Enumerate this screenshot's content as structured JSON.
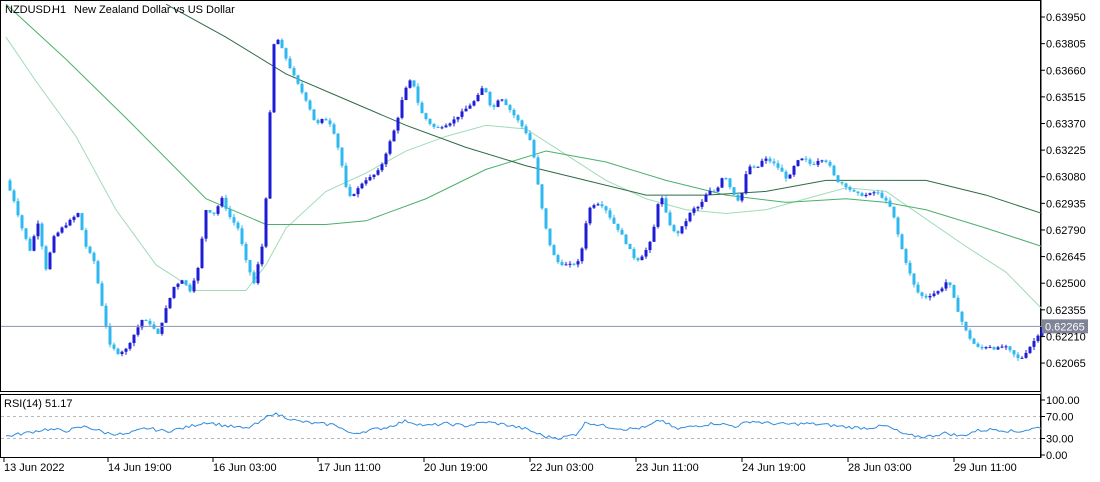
{
  "chart_data": {
    "type": "candlestick",
    "symbol": "NZDUSD.",
    "timeframe": "H1",
    "title": "New Zealand Dollar vs US Dollar",
    "current_price": "0.62265",
    "y_ticks": [
      "0.63950",
      "0.63805",
      "0.63660",
      "0.63515",
      "0.63370",
      "0.63225",
      "0.63080",
      "0.62935",
      "0.62790",
      "0.62645",
      "0.62500",
      "0.62355",
      "0.62210",
      "0.62065"
    ],
    "ylim": [
      0.6194,
      0.6401
    ],
    "x_tick_labels": [
      "13 Jun 2022",
      "14 Jun 19:00",
      "16 Jun 03:00",
      "17 Jun 11:00",
      "20 Jun 19:00",
      "22 Jun 03:00",
      "23 Jun 11:00",
      "24 Jun 19:00",
      "28 Jun 03:00",
      "29 Jun 11:00"
    ],
    "price_path": [
      [
        0,
        0.6306
      ],
      [
        8,
        0.6295
      ],
      [
        16,
        0.628
      ],
      [
        24,
        0.6268
      ],
      [
        32,
        0.6283
      ],
      [
        40,
        0.6258
      ],
      [
        48,
        0.6275
      ],
      [
        56,
        0.628
      ],
      [
        64,
        0.6284
      ],
      [
        72,
        0.6288
      ],
      [
        80,
        0.627
      ],
      [
        88,
        0.6262
      ],
      [
        96,
        0.6238
      ],
      [
        104,
        0.6216
      ],
      [
        112,
        0.6212
      ],
      [
        120,
        0.6214
      ],
      [
        128,
        0.6222
      ],
      [
        136,
        0.623
      ],
      [
        144,
        0.6228
      ],
      [
        152,
        0.6222
      ],
      [
        160,
        0.6236
      ],
      [
        168,
        0.6248
      ],
      [
        176,
        0.6252
      ],
      [
        184,
        0.6246
      ],
      [
        192,
        0.6258
      ],
      [
        200,
        0.629
      ],
      [
        208,
        0.6288
      ],
      [
        216,
        0.6296
      ],
      [
        224,
        0.6286
      ],
      [
        232,
        0.628
      ],
      [
        240,
        0.6262
      ],
      [
        248,
        0.625
      ],
      [
        256,
        0.627
      ],
      [
        262,
        0.631
      ],
      [
        266,
        0.6375
      ],
      [
        270,
        0.6385
      ],
      [
        278,
        0.6375
      ],
      [
        286,
        0.6365
      ],
      [
        294,
        0.6356
      ],
      [
        302,
        0.6348
      ],
      [
        310,
        0.6336
      ],
      [
        318,
        0.634
      ],
      [
        326,
        0.6336
      ],
      [
        334,
        0.632
      ],
      [
        342,
        0.6296
      ],
      [
        350,
        0.63
      ],
      [
        358,
        0.6306
      ],
      [
        366,
        0.6308
      ],
      [
        374,
        0.6312
      ],
      [
        382,
        0.6324
      ],
      [
        390,
        0.6336
      ],
      [
        398,
        0.6354
      ],
      [
        406,
        0.6362
      ],
      [
        414,
        0.6344
      ],
      [
        422,
        0.6338
      ],
      [
        430,
        0.6334
      ],
      [
        438,
        0.6336
      ],
      [
        446,
        0.6338
      ],
      [
        454,
        0.6342
      ],
      [
        462,
        0.6346
      ],
      [
        470,
        0.635
      ],
      [
        478,
        0.6358
      ],
      [
        486,
        0.6344
      ],
      [
        494,
        0.6352
      ],
      [
        502,
        0.6346
      ],
      [
        510,
        0.634
      ],
      [
        518,
        0.6334
      ],
      [
        526,
        0.6326
      ],
      [
        534,
        0.6296
      ],
      [
        542,
        0.6274
      ],
      [
        550,
        0.6262
      ],
      [
        558,
        0.626
      ],
      [
        566,
        0.626
      ],
      [
        574,
        0.6262
      ],
      [
        582,
        0.629
      ],
      [
        590,
        0.6294
      ],
      [
        598,
        0.6292
      ],
      [
        606,
        0.6284
      ],
      [
        614,
        0.6278
      ],
      [
        622,
        0.627
      ],
      [
        630,
        0.6262
      ],
      [
        638,
        0.6266
      ],
      [
        646,
        0.6274
      ],
      [
        654,
        0.63
      ],
      [
        662,
        0.6284
      ],
      [
        670,
        0.6276
      ],
      [
        678,
        0.6282
      ],
      [
        686,
        0.629
      ],
      [
        694,
        0.6292
      ],
      [
        702,
        0.63
      ],
      [
        710,
        0.63
      ],
      [
        718,
        0.631
      ],
      [
        726,
        0.63
      ],
      [
        734,
        0.6294
      ],
      [
        742,
        0.6314
      ],
      [
        750,
        0.6312
      ],
      [
        758,
        0.6318
      ],
      [
        766,
        0.6316
      ],
      [
        774,
        0.6312
      ],
      [
        782,
        0.6306
      ],
      [
        790,
        0.6316
      ],
      [
        798,
        0.6318
      ],
      [
        806,
        0.6314
      ],
      [
        814,
        0.6318
      ],
      [
        822,
        0.6316
      ],
      [
        830,
        0.6306
      ],
      [
        838,
        0.6304
      ],
      [
        846,
        0.63
      ],
      [
        854,
        0.6298
      ],
      [
        862,
        0.6298
      ],
      [
        870,
        0.63
      ],
      [
        878,
        0.6296
      ],
      [
        886,
        0.629
      ],
      [
        894,
        0.6272
      ],
      [
        902,
        0.6258
      ],
      [
        910,
        0.6246
      ],
      [
        918,
        0.6242
      ],
      [
        926,
        0.6244
      ],
      [
        934,
        0.6246
      ],
      [
        942,
        0.6252
      ],
      [
        950,
        0.6238
      ],
      [
        958,
        0.6226
      ],
      [
        966,
        0.6218
      ],
      [
        974,
        0.6214
      ],
      [
        982,
        0.6216
      ],
      [
        990,
        0.6214
      ],
      [
        998,
        0.6216
      ],
      [
        1006,
        0.6212
      ],
      [
        1014,
        0.6208
      ],
      [
        1022,
        0.6214
      ],
      [
        1030,
        0.622
      ],
      [
        1036,
        0.6226
      ]
    ],
    "ma_fast": [
      [
        0,
        0.6384
      ],
      [
        30,
        0.636
      ],
      [
        70,
        0.633
      ],
      [
        110,
        0.629
      ],
      [
        150,
        0.626
      ],
      [
        190,
        0.6246
      ],
      [
        240,
        0.6246
      ],
      [
        260,
        0.626
      ],
      [
        280,
        0.628
      ],
      [
        320,
        0.63
      ],
      [
        360,
        0.631
      ],
      [
        400,
        0.6322
      ],
      [
        440,
        0.633
      ],
      [
        480,
        0.6336
      ],
      [
        520,
        0.6334
      ],
      [
        560,
        0.632
      ],
      [
        600,
        0.6306
      ],
      [
        640,
        0.6296
      ],
      [
        680,
        0.629
      ],
      [
        720,
        0.6288
      ],
      [
        760,
        0.629
      ],
      [
        800,
        0.6296
      ],
      [
        840,
        0.6302
      ],
      [
        880,
        0.63
      ],
      [
        920,
        0.6285
      ],
      [
        960,
        0.627
      ],
      [
        1000,
        0.6256
      ],
      [
        1036,
        0.6236
      ]
    ],
    "ma_mid": [
      [
        0,
        0.6402
      ],
      [
        60,
        0.6372
      ],
      [
        120,
        0.634
      ],
      [
        200,
        0.6296
      ],
      [
        260,
        0.6282
      ],
      [
        320,
        0.6282
      ],
      [
        360,
        0.6284
      ],
      [
        420,
        0.6296
      ],
      [
        480,
        0.6312
      ],
      [
        540,
        0.6322
      ],
      [
        600,
        0.6316
      ],
      [
        660,
        0.6306
      ],
      [
        720,
        0.6298
      ],
      [
        780,
        0.6294
      ],
      [
        840,
        0.6296
      ],
      [
        880,
        0.6294
      ],
      [
        920,
        0.629
      ],
      [
        980,
        0.628
      ],
      [
        1036,
        0.627
      ]
    ],
    "ma_slow": [
      [
        160,
        0.6402
      ],
      [
        220,
        0.6384
      ],
      [
        280,
        0.6364
      ],
      [
        340,
        0.635
      ],
      [
        400,
        0.6336
      ],
      [
        460,
        0.6324
      ],
      [
        520,
        0.6314
      ],
      [
        580,
        0.6306
      ],
      [
        640,
        0.6298
      ],
      [
        700,
        0.6298
      ],
      [
        760,
        0.63
      ],
      [
        820,
        0.6306
      ],
      [
        880,
        0.6306
      ],
      [
        920,
        0.6306
      ],
      [
        980,
        0.6298
      ],
      [
        1036,
        0.6288
      ]
    ],
    "rsi": {
      "label": "RSI(14) 51.17",
      "y_ticks": [
        "100.00",
        "70.00",
        "30.00",
        "0.00"
      ],
      "levels": [
        70,
        30
      ],
      "ylim": [
        0,
        100
      ],
      "path": [
        [
          0,
          34
        ],
        [
          20,
          40
        ],
        [
          40,
          47
        ],
        [
          60,
          44
        ],
        [
          80,
          52
        ],
        [
          100,
          40
        ],
        [
          120,
          37
        ],
        [
          140,
          49
        ],
        [
          160,
          43
        ],
        [
          180,
          50
        ],
        [
          200,
          60
        ],
        [
          220,
          53
        ],
        [
          240,
          48
        ],
        [
          255,
          60
        ],
        [
          265,
          76
        ],
        [
          275,
          72
        ],
        [
          290,
          62
        ],
        [
          310,
          57
        ],
        [
          330,
          55
        ],
        [
          345,
          38
        ],
        [
          360,
          44
        ],
        [
          380,
          50
        ],
        [
          400,
          62
        ],
        [
          420,
          53
        ],
        [
          440,
          57
        ],
        [
          460,
          53
        ],
        [
          480,
          60
        ],
        [
          500,
          55
        ],
        [
          520,
          47
        ],
        [
          540,
          33
        ],
        [
          555,
          31
        ],
        [
          570,
          38
        ],
        [
          580,
          60
        ],
        [
          600,
          52
        ],
        [
          620,
          47
        ],
        [
          640,
          50
        ],
        [
          655,
          64
        ],
        [
          670,
          47
        ],
        [
          690,
          53
        ],
        [
          710,
          58
        ],
        [
          730,
          52
        ],
        [
          745,
          62
        ],
        [
          760,
          58
        ],
        [
          780,
          56
        ],
        [
          800,
          57
        ],
        [
          820,
          55
        ],
        [
          840,
          51
        ],
        [
          860,
          49
        ],
        [
          880,
          53
        ],
        [
          900,
          36
        ],
        [
          920,
          33
        ],
        [
          940,
          40
        ],
        [
          955,
          34
        ],
        [
          970,
          44
        ],
        [
          990,
          47
        ],
        [
          1010,
          42
        ],
        [
          1036,
          51
        ]
      ]
    }
  }
}
